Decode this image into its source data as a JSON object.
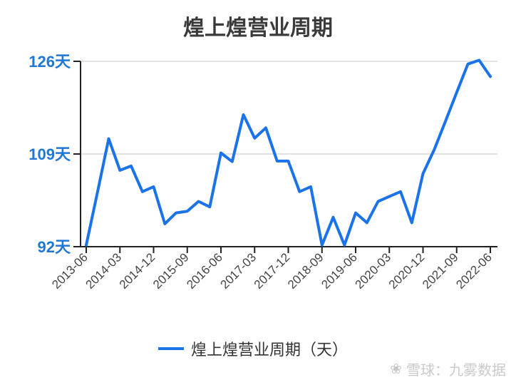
{
  "chart_data": {
    "type": "line",
    "title": "煌上煌营业周期",
    "y_tick_labels": [
      "92天",
      "109天",
      "126天"
    ],
    "y_ticks": [
      92,
      109,
      126
    ],
    "ylim": [
      92,
      126
    ],
    "x_tick_labels": [
      "2013-06",
      "2014-03",
      "2014-12",
      "2015-09",
      "2016-06",
      "2017-03",
      "2017-12",
      "2018-09",
      "2019-06",
      "2020-03",
      "2020-12",
      "2021-09",
      "2022-06"
    ],
    "x": [
      "2013-06",
      "2013-09",
      "2013-12",
      "2014-03",
      "2014-06",
      "2014-09",
      "2014-12",
      "2015-03",
      "2015-06",
      "2015-09",
      "2015-12",
      "2016-03",
      "2016-06",
      "2016-09",
      "2016-12",
      "2017-03",
      "2017-06",
      "2017-09",
      "2017-12",
      "2018-03",
      "2018-06",
      "2018-09",
      "2018-12",
      "2019-03",
      "2019-06",
      "2019-09",
      "2019-12",
      "2020-03",
      "2020-06",
      "2020-09",
      "2020-12",
      "2021-03",
      "2021-06",
      "2021-09",
      "2021-12",
      "2022-03",
      "2022-06"
    ],
    "series": [
      {
        "name": "煌上煌营业周期（天）",
        "color": "#1a73e8",
        "values": [
          92.3,
          102.0,
          111.8,
          106.0,
          106.8,
          102.1,
          103.0,
          96.2,
          98.2,
          98.5,
          100.3,
          99.3,
          109.2,
          107.6,
          116.2,
          111.9,
          113.8,
          107.7,
          107.7,
          102.1,
          103.0,
          92.3,
          97.4,
          92.3,
          98.2,
          96.4,
          100.3,
          101.2,
          102.1,
          96.4,
          105.4,
          109.8,
          115.0,
          120.3,
          125.5,
          126.2,
          123.2
        ]
      }
    ],
    "grid": "horizontal",
    "legend_position": "bottom"
  },
  "legend": {
    "label": "煌上煌营业周期（天）"
  },
  "watermark": {
    "logo": "❀",
    "text": "雪球：九雾数据"
  }
}
